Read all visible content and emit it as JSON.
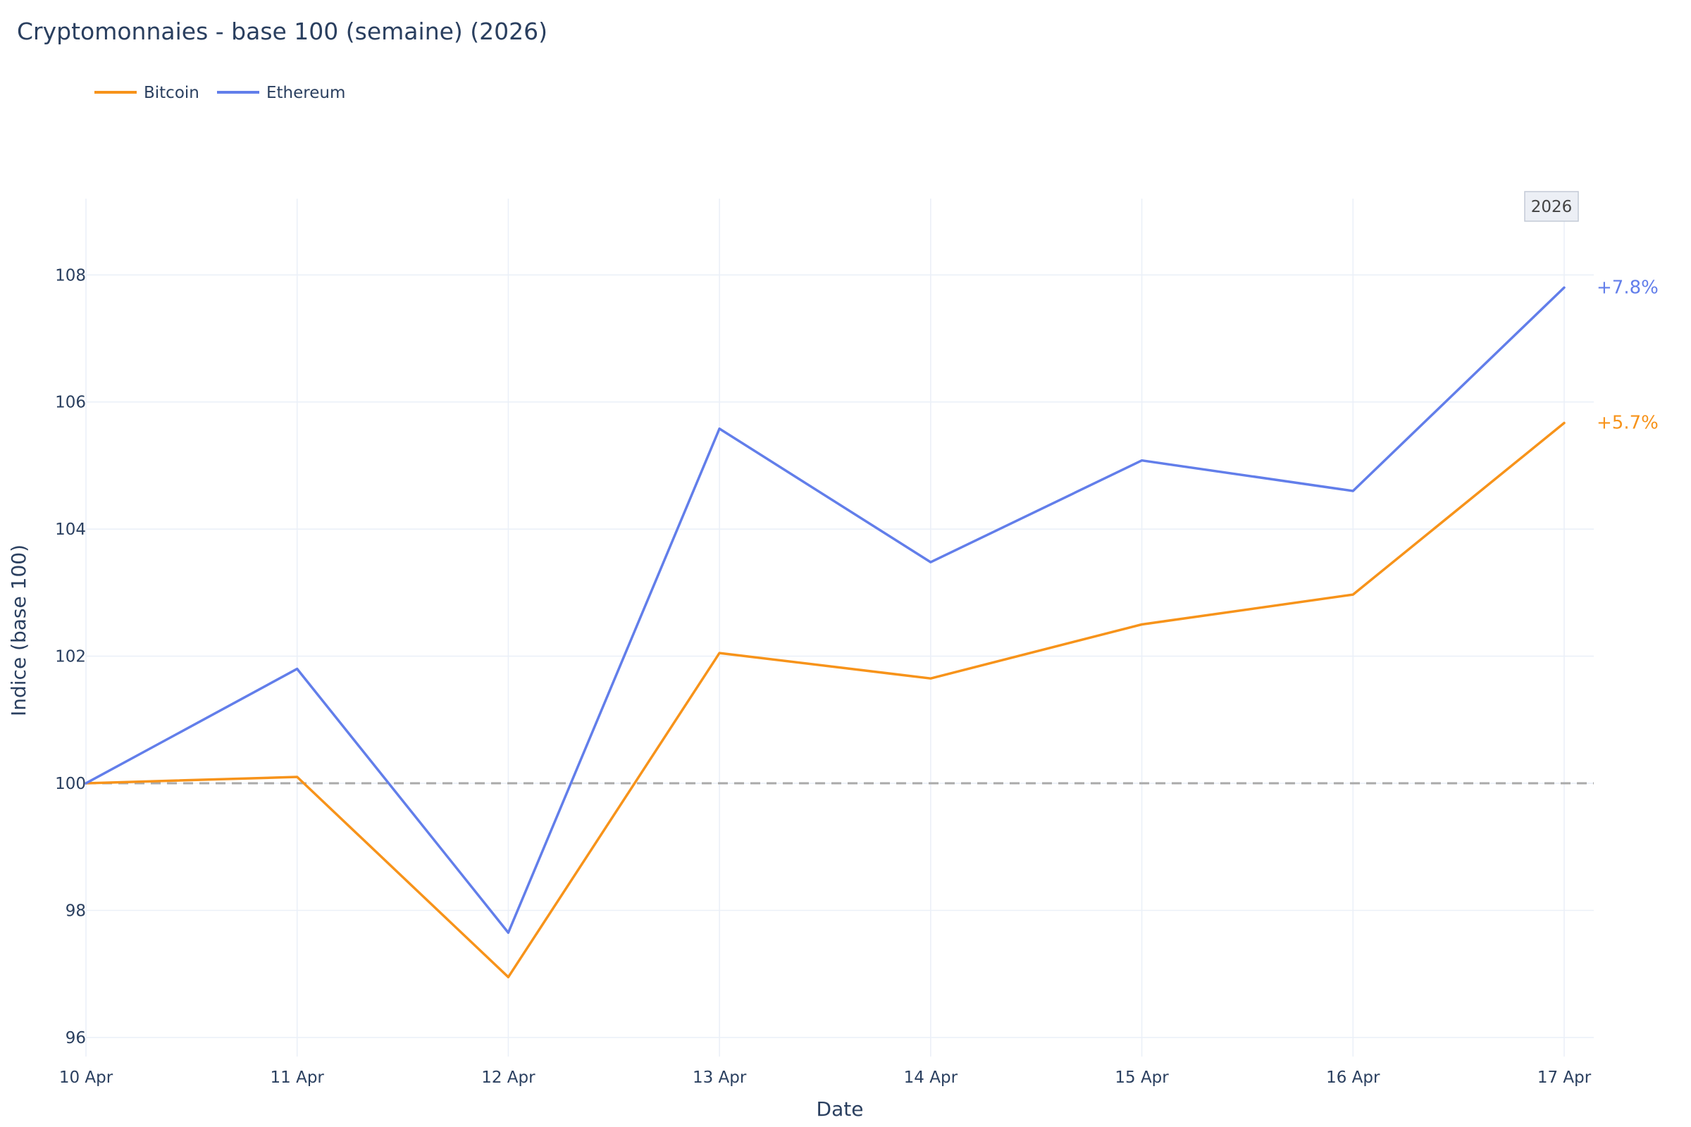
{
  "chart_data": {
    "type": "line",
    "title": "Cryptomonnaies - base 100 (semaine) (2026)",
    "xlabel": "Date",
    "ylabel": "Indice (base 100)",
    "categories": [
      "10 Apr",
      "11 Apr",
      "12 Apr",
      "13 Apr",
      "14 Apr",
      "15 Apr",
      "16 Apr",
      "17 Apr"
    ],
    "series": [
      {
        "name": "Bitcoin",
        "color": "#f7931a",
        "values": [
          100.0,
          100.1,
          96.95,
          102.05,
          101.65,
          102.5,
          102.97,
          105.67
        ],
        "end_label": "+5.7%"
      },
      {
        "name": "Ethereum",
        "color": "#627eea",
        "values": [
          100.0,
          101.8,
          97.65,
          105.58,
          103.48,
          105.08,
          104.6,
          107.8
        ],
        "end_label": "+7.8%"
      }
    ],
    "ylim": [
      95.7,
      109.2
    ],
    "yticks": [
      96,
      98,
      100,
      102,
      104,
      106,
      108
    ],
    "reference_line": {
      "value": 100,
      "style": "dashed",
      "color": "#aaaaaa"
    },
    "grid": true,
    "legend_position": "top-left",
    "year_badge": "2026"
  }
}
